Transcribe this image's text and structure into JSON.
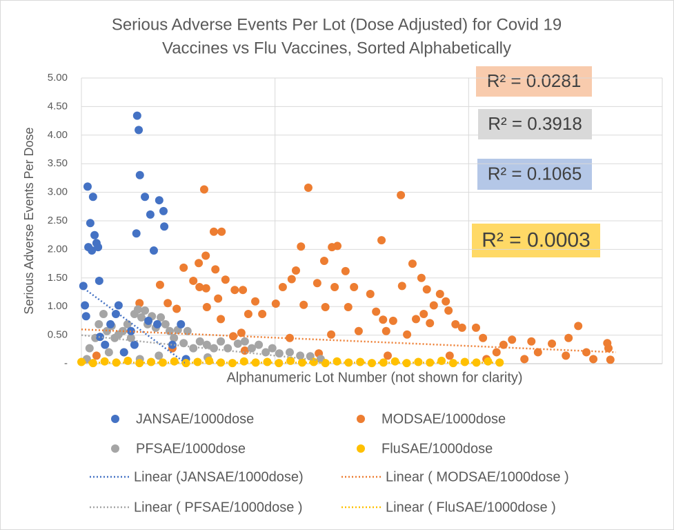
{
  "chart_data": {
    "type": "scatter",
    "title": [
      "Serious Adverse Events Per Lot (Dose Adjusted) for Covid 19",
      "Vaccines vs Flu Vaccines, Sorted Alphabetically"
    ],
    "x_label": "Alphanumeric Lot Number (not shown for clarity)",
    "y_label": "Serious Adverse Events Per Dose",
    "xlim": [
      0,
      1500
    ],
    "xticks": [
      0,
      500,
      1000,
      1500
    ],
    "ylim": [
      0,
      5
    ],
    "yticks": [
      {
        "value": 0,
        "label": "-"
      },
      {
        "value": 0.5,
        "label": "0.50"
      },
      {
        "value": 1,
        "label": "1.00"
      },
      {
        "value": 1.5,
        "label": "1.50"
      },
      {
        "value": 2,
        "label": "2.00"
      },
      {
        "value": 2.5,
        "label": "2.50"
      },
      {
        "value": 3,
        "label": "3.00"
      },
      {
        "value": 3.5,
        "label": "3.50"
      },
      {
        "value": 4,
        "label": "4.00"
      },
      {
        "value": 4.5,
        "label": "4.50"
      },
      {
        "value": 5,
        "label": "5.00"
      }
    ],
    "grid": true,
    "series": [
      {
        "name": "JANSAE/1000dose",
        "color": "#4472c4",
        "x": [
          5,
          9,
          12,
          16,
          23,
          18,
          27,
          30,
          34,
          39,
          43,
          46,
          48,
          61,
          75,
          96,
          89,
          144,
          148,
          151,
          142,
          164,
          178,
          187,
          201,
          212,
          214,
          196,
          257,
          128,
          235,
          270,
          110,
          173,
          137
        ],
        "values": [
          1.36,
          1.02,
          0.83,
          3.1,
          2.46,
          2.04,
          1.98,
          2.92,
          2.25,
          2.11,
          2.04,
          1.45,
          0.47,
          0.33,
          0.69,
          1.02,
          0.87,
          4.34,
          4.09,
          3.3,
          2.28,
          2.92,
          2.61,
          1.98,
          2.86,
          2.67,
          2.4,
          0.69,
          0.69,
          0.57,
          0.33,
          0.08,
          0.2,
          0.75,
          0.33
        ]
      },
      {
        "name": "MODSAE/1000dose",
        "color": "#ed7d31",
        "x": [
          317,
          586,
          825,
          342,
          362,
          775,
          661,
          567,
          647,
          855,
          264,
          303,
          321,
          627,
          346,
          289,
          372,
          305,
          322,
          203,
          682,
          609,
          554,
          543,
          520,
          704,
          654,
          746,
          828,
          878,
          892,
          910,
          926,
          941,
          948,
          966,
          223,
          246,
          150,
          324,
          353,
          396,
          417,
          449,
          502,
          574,
          630,
          689,
          761,
          779,
          805,
          864,
          884,
          900,
          983,
          1019,
          467,
          431,
          360,
          392,
          413,
          538,
          716,
          645,
          787,
          841,
          1037,
          1090,
          1112,
          1162,
          1215,
          1283,
          1304,
          1358,
          1361,
          1144,
          1251,
          1322,
          1366,
          1072,
          951,
          791,
          613,
          422,
          235,
          110,
          39,
          1258,
          1179,
          1046
        ],
        "values": [
          3.05,
          3.08,
          2.95,
          2.31,
          2.31,
          2.16,
          2.06,
          2.05,
          2.04,
          1.75,
          1.68,
          1.76,
          1.89,
          1.8,
          1.65,
          1.45,
          1.47,
          1.34,
          1.32,
          1.38,
          1.62,
          1.41,
          1.63,
          1.48,
          1.34,
          1.34,
          1.34,
          1.22,
          1.36,
          1.5,
          1.3,
          1.02,
          1.22,
          1.09,
          0.93,
          0.69,
          1.06,
          0.96,
          1.06,
          0.99,
          1.14,
          1.29,
          1.29,
          1.09,
          1.05,
          1.03,
          0.99,
          0.99,
          0.91,
          0.77,
          0.75,
          0.78,
          0.87,
          0.71,
          0.63,
          0.63,
          0.87,
          0.87,
          0.78,
          0.48,
          0.54,
          0.45,
          0.57,
          0.51,
          0.57,
          0.51,
          0.45,
          0.33,
          0.42,
          0.39,
          0.35,
          0.66,
          0.2,
          0.36,
          0.27,
          0.08,
          0.14,
          0.08,
          0.07,
          0.2,
          0.14,
          0.14,
          0.18,
          0.23,
          0.27,
          0.2,
          0.14,
          0.45,
          0.2,
          0.08
        ]
      },
      {
        "name": "PFSAE/1000dose",
        "color": "#a5a5a5",
        "x": [
          14,
          21,
          36,
          45,
          57,
          66,
          78,
          86,
          96,
          107,
          119,
          128,
          137,
          146,
          155,
          164,
          171,
          182,
          192,
          205,
          217,
          228,
          239,
          249,
          264,
          274,
          289,
          306,
          324,
          342,
          360,
          378,
          404,
          422,
          440,
          458,
          476,
          493,
          511,
          538,
          565,
          591,
          618,
          71,
          200,
          326,
          151
        ],
        "values": [
          0.08,
          0.27,
          0.45,
          0.69,
          0.87,
          0.57,
          0.66,
          0.45,
          0.51,
          0.57,
          0.69,
          0.45,
          0.87,
          0.95,
          0.81,
          0.93,
          0.69,
          0.83,
          0.63,
          0.81,
          0.69,
          0.57,
          0.45,
          0.59,
          0.36,
          0.57,
          0.27,
          0.39,
          0.33,
          0.27,
          0.39,
          0.27,
          0.35,
          0.39,
          0.27,
          0.33,
          0.2,
          0.27,
          0.18,
          0.2,
          0.14,
          0.13,
          0.08,
          0.2,
          0.14,
          0.11,
          0.08
        ]
      },
      {
        "name": "FluSAE/1000dose",
        "color": "#ffc000",
        "x": [
          0,
          30,
          60,
          90,
          120,
          150,
          180,
          210,
          240,
          270,
          300,
          330,
          360,
          390,
          420,
          450,
          480,
          510,
          540,
          570,
          600,
          630,
          660,
          690,
          720,
          750,
          780,
          810,
          840,
          870,
          900,
          930,
          960,
          990,
          1020,
          1050,
          1080
        ],
        "values": [
          0.03,
          0.01,
          0.04,
          0.02,
          0.05,
          0.01,
          0.03,
          0.02,
          0.04,
          0.01,
          0.03,
          0.05,
          0.02,
          0.01,
          0.04,
          0.02,
          0.03,
          0.01,
          0.05,
          0.02,
          0.03,
          0.01,
          0.04,
          0.02,
          0.03,
          0.01,
          0.02,
          0.04,
          0.01,
          0.03,
          0.02,
          0.05,
          0.01,
          0.03,
          0.02,
          0.04,
          0.02
        ]
      }
    ],
    "trendlines": [
      {
        "name": "Linear (JANSAE/1000dose)",
        "color": "#4472c4",
        "x": [
          0,
          271
        ],
        "values": [
          1.35,
          0
        ]
      },
      {
        "name": "Linear ( MODSAE/1000dose )",
        "color": "#ed7d31",
        "x": [
          0,
          1380
        ],
        "values": [
          0.6,
          0.2
        ]
      },
      {
        "name": "Linear ( PFSAE/1000dose )",
        "color": "#a5a5a5",
        "x": [
          0,
          627
        ],
        "values": [
          0.5,
          0.05
        ]
      },
      {
        "name": "Linear ( FluSAE/1000dose )",
        "color": "#ffc000",
        "x": [
          0,
          1080
        ],
        "values": [
          0.02,
          0.02
        ]
      }
    ],
    "annotations": [
      {
        "text": "R² = 0.0281",
        "color": "#f8cbad"
      },
      {
        "text": "R² = 0.3918",
        "color": "#d9d9d9"
      },
      {
        "text": "R² = 0.1065",
        "color": "#b4c7e7"
      },
      {
        "text": "R² = 0.0003",
        "color": "#ffd966"
      }
    ]
  }
}
